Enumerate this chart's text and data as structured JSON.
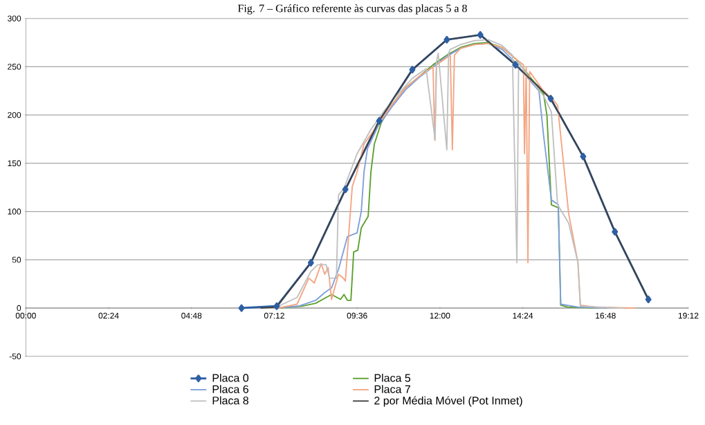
{
  "chart_data": {
    "type": "line",
    "title": "Fig. 7 – Gráfico referente às curvas das placas 5 a 8",
    "xlim": [
      0,
      19.2
    ],
    "ylim": [
      -50,
      300
    ],
    "xticks": [
      {
        "value": 0,
        "label": "00:00"
      },
      {
        "value": 2.4,
        "label": "02:24"
      },
      {
        "value": 4.8,
        "label": "04:48"
      },
      {
        "value": 7.2,
        "label": "07:12"
      },
      {
        "value": 9.6,
        "label": "09:36"
      },
      {
        "value": 12,
        "label": "12:00"
      },
      {
        "value": 14.4,
        "label": "14:24"
      },
      {
        "value": 16.8,
        "label": "16:48"
      },
      {
        "value": 19.2,
        "label": "19:12"
      }
    ],
    "yticks": [
      -50,
      0,
      50,
      100,
      150,
      200,
      250,
      300
    ],
    "grid": "y",
    "legend": "bottom",
    "line_style": "solid",
    "series": [
      {
        "name": "Placa 0",
        "color": "#2e5fa3",
        "marker": "diamond",
        "x": [
          6.25,
          7.27,
          8.26,
          9.26,
          10.24,
          11.2,
          12.2,
          13.17,
          14.19,
          15.21,
          16.15,
          17.07,
          18.04
        ],
        "values": [
          0,
          2,
          47,
          123,
          194,
          247,
          278,
          283,
          252,
          217,
          157,
          79,
          9
        ]
      },
      {
        "name": "Placa 5",
        "color": "#5aa02c",
        "x": [
          7.3,
          8.0,
          8.4,
          8.86,
          9.12,
          9.22,
          9.32,
          9.42,
          9.5,
          9.62,
          9.72,
          9.92,
          10.0,
          10.1,
          10.3,
          10.6,
          11.0,
          11.4,
          11.8,
          12.2,
          12.6,
          13.0,
          13.4,
          13.8,
          14.2,
          14.6,
          15.0,
          15.1,
          15.23,
          15.43,
          15.5,
          15.7,
          16.6
        ],
        "values": [
          0,
          2,
          5,
          14,
          9,
          14,
          8,
          8,
          58,
          60,
          83,
          95,
          141,
          170,
          192,
          210,
          228,
          240,
          252,
          262,
          270,
          274,
          275,
          270,
          258,
          240,
          222,
          200,
          107,
          104,
          3,
          1,
          0
        ]
      },
      {
        "name": "Placa 6",
        "color": "#7f9fdb",
        "x": [
          7.2,
          7.9,
          8.4,
          8.66,
          8.86,
          9.06,
          9.32,
          9.6,
          9.72,
          9.8,
          9.9,
          10.2,
          10.6,
          11.0,
          11.4,
          11.8,
          12.2,
          12.6,
          13.0,
          13.4,
          13.8,
          14.2,
          14.6,
          14.87,
          15.0,
          15.23,
          15.43,
          15.5,
          16.0,
          16.8
        ],
        "values": [
          0,
          2,
          8,
          16,
          21,
          40,
          74,
          78,
          100,
          141,
          165,
          188,
          208,
          226,
          239,
          250,
          261,
          269,
          273,
          274,
          268,
          254,
          236,
          225,
          180,
          112,
          107,
          4,
          1,
          0
        ]
      },
      {
        "name": "Placa 7",
        "color": "#f4a582",
        "x": [
          7.3,
          7.86,
          8.2,
          8.36,
          8.56,
          8.66,
          8.76,
          8.86,
          9.06,
          9.2,
          9.26,
          9.36,
          9.46,
          9.6,
          9.8,
          10.2,
          10.6,
          11.0,
          11.4,
          11.8,
          11.85,
          11.9,
          12.3,
          12.36,
          12.42,
          12.6,
          13.0,
          13.4,
          13.8,
          14.2,
          14.42,
          14.45,
          14.5,
          14.55,
          14.6,
          14.8,
          15.0,
          15.3,
          15.41,
          15.73,
          16.0,
          16.07,
          16.5,
          17.67
        ],
        "values": [
          0,
          4,
          31,
          26,
          46,
          35,
          42,
          9,
          35,
          31,
          28,
          78,
          126,
          141,
          170,
          190,
          210,
          228,
          240,
          250,
          174,
          252,
          262,
          164,
          262,
          269,
          273,
          274,
          270,
          258,
          252,
          160,
          250,
          47,
          245,
          235,
          225,
          215,
          210,
          98,
          47,
          3,
          1,
          0
        ]
      },
      {
        "name": "Placa 8",
        "color": "#c0c0c0",
        "x": [
          7.2,
          7.86,
          8.26,
          8.46,
          8.7,
          8.8,
          9.0,
          9.06,
          9.22,
          9.6,
          10.0,
          10.4,
          10.8,
          11.2,
          11.6,
          11.86,
          11.9,
          11.95,
          12.2,
          12.25,
          12.3,
          12.6,
          13.0,
          13.4,
          13.8,
          14.1,
          14.23,
          14.28,
          14.6,
          15.0,
          15.23,
          15.41,
          15.73,
          16.0,
          16.07,
          16.6,
          17.3
        ],
        "values": [
          0,
          11,
          38,
          45,
          45,
          31,
          31,
          117,
          124,
          160,
          185,
          205,
          222,
          238,
          248,
          174,
          255,
          264,
          164,
          264,
          268,
          273,
          277,
          278,
          272,
          262,
          47,
          255,
          238,
          220,
          203,
          107,
          88,
          47,
          2,
          1,
          0
        ]
      },
      {
        "name": "2 por Média Móvel (Pot Inmet)",
        "color": "#404040",
        "x": [
          6.8,
          7.27,
          8.26,
          9.26,
          10.24,
          11.2,
          12.2,
          13.17,
          14.19,
          15.21,
          16.15,
          17.07,
          18.04
        ],
        "values": [
          0,
          1,
          47,
          123,
          194,
          247,
          278,
          283,
          252,
          217,
          157,
          79,
          9
        ]
      }
    ]
  }
}
